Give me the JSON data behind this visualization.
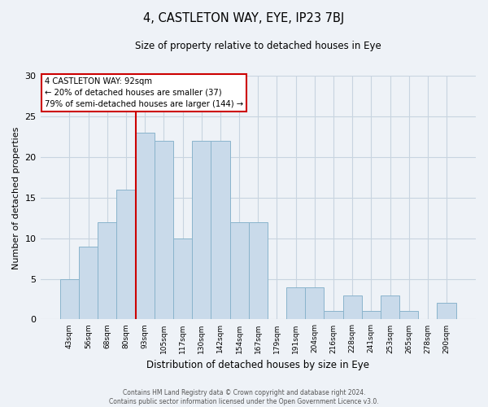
{
  "title": "4, CASTLETON WAY, EYE, IP23 7BJ",
  "subtitle": "Size of property relative to detached houses in Eye",
  "xlabel": "Distribution of detached houses by size in Eye",
  "ylabel": "Number of detached properties",
  "bar_labels": [
    "43sqm",
    "56sqm",
    "68sqm",
    "80sqm",
    "93sqm",
    "105sqm",
    "117sqm",
    "130sqm",
    "142sqm",
    "154sqm",
    "167sqm",
    "179sqm",
    "191sqm",
    "204sqm",
    "216sqm",
    "228sqm",
    "241sqm",
    "253sqm",
    "265sqm",
    "278sqm",
    "290sqm"
  ],
  "bar_values": [
    5,
    9,
    12,
    16,
    23,
    22,
    10,
    22,
    22,
    12,
    12,
    0,
    4,
    4,
    1,
    3,
    1,
    3,
    1,
    0,
    2
  ],
  "bar_color": "#c9daea",
  "bar_edge_color": "#8ab4cc",
  "ylim": [
    0,
    30
  ],
  "yticks": [
    0,
    5,
    10,
    15,
    20,
    25,
    30
  ],
  "property_line_idx": 4,
  "property_line_color": "#cc0000",
  "annotation_title": "4 CASTLETON WAY: 92sqm",
  "annotation_line1": "← 20% of detached houses are smaller (37)",
  "annotation_line2": "79% of semi-detached houses are larger (144) →",
  "annotation_box_facecolor": "#ffffff",
  "annotation_box_edgecolor": "#cc0000",
  "footer_line1": "Contains HM Land Registry data © Crown copyright and database right 2024.",
  "footer_line2": "Contains public sector information licensed under the Open Government Licence v3.0.",
  "fig_facecolor": "#eef2f7",
  "plot_facecolor": "#eef2f7",
  "grid_color": "#c8d4e0"
}
